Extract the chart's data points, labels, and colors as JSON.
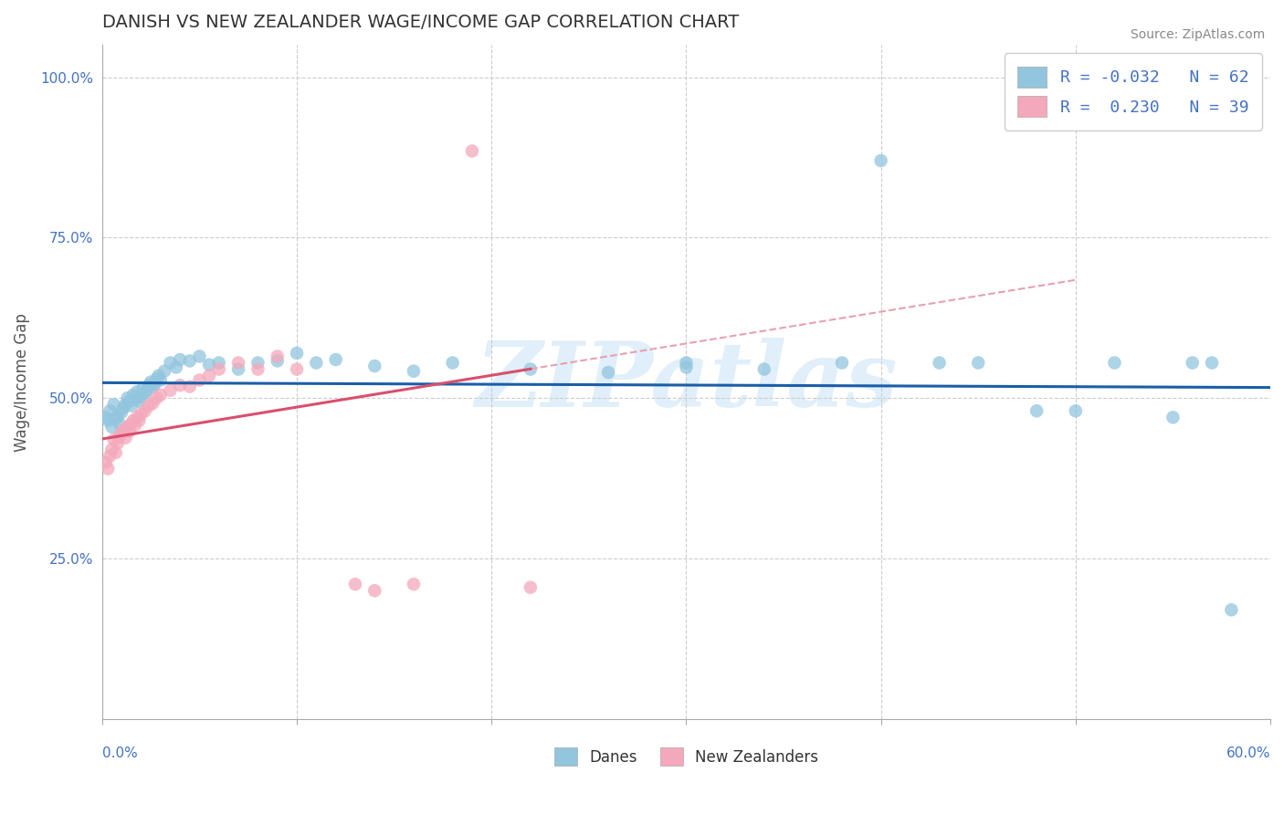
{
  "title": "DANISH VS NEW ZEALANDER WAGE/INCOME GAP CORRELATION CHART",
  "source_text": "Source: ZipAtlas.com",
  "ylabel": "Wage/Income Gap",
  "y_ticks": [
    0.0,
    0.25,
    0.5,
    0.75,
    1.0
  ],
  "y_tick_labels": [
    "",
    "25.0%",
    "50.0%",
    "75.0%",
    "100.0%"
  ],
  "x_range": [
    0.0,
    0.6
  ],
  "y_range": [
    0.0,
    1.05
  ],
  "legend_blue_r": "R = -0.032",
  "legend_blue_n": "N = 62",
  "legend_pink_r": "R =  0.230",
  "legend_pink_n": "N = 39",
  "danes_label": "Danes",
  "nz_label": "New Zealanders",
  "blue_color": "#92C5DE",
  "pink_color": "#F4A8BB",
  "blue_line_color": "#1A5EA8",
  "pink_line_color": "#D94F6E",
  "pink_line_dash_color": "#E8A0B0",
  "watermark_text": "ZIPatlas",
  "background_color": "#ffffff",
  "grid_color": "#cccccc",
  "tick_color": "#4472c4",
  "danes_x": [
    0.002,
    0.003,
    0.004,
    0.005,
    0.006,
    0.007,
    0.008,
    0.009,
    0.01,
    0.011,
    0.012,
    0.013,
    0.014,
    0.015,
    0.016,
    0.017,
    0.018,
    0.019,
    0.02,
    0.021,
    0.022,
    0.023,
    0.024,
    0.025,
    0.026,
    0.027,
    0.028,
    0.029,
    0.03,
    0.032,
    0.035,
    0.038,
    0.04,
    0.045,
    0.05,
    0.055,
    0.06,
    0.07,
    0.08,
    0.09,
    0.1,
    0.11,
    0.12,
    0.14,
    0.16,
    0.18,
    0.22,
    0.26,
    0.3,
    0.34,
    0.38,
    0.4,
    0.45,
    0.48,
    0.5,
    0.52,
    0.55,
    0.57,
    0.58,
    0.3,
    0.43,
    0.56
  ],
  "danes_y": [
    0.47,
    0.465,
    0.48,
    0.455,
    0.49,
    0.468,
    0.472,
    0.46,
    0.478,
    0.485,
    0.49,
    0.5,
    0.495,
    0.488,
    0.505,
    0.498,
    0.51,
    0.495,
    0.502,
    0.515,
    0.508,
    0.512,
    0.52,
    0.525,
    0.518,
    0.522,
    0.53,
    0.535,
    0.528,
    0.542,
    0.555,
    0.548,
    0.56,
    0.558,
    0.565,
    0.552,
    0.555,
    0.545,
    0.555,
    0.558,
    0.57,
    0.555,
    0.56,
    0.55,
    0.542,
    0.555,
    0.545,
    0.54,
    0.548,
    0.545,
    0.555,
    0.87,
    0.555,
    0.48,
    0.48,
    0.555,
    0.47,
    0.555,
    0.17,
    0.555,
    0.555,
    0.555
  ],
  "nz_x": [
    0.002,
    0.003,
    0.004,
    0.005,
    0.006,
    0.007,
    0.008,
    0.009,
    0.01,
    0.011,
    0.012,
    0.013,
    0.014,
    0.015,
    0.016,
    0.017,
    0.018,
    0.019,
    0.02,
    0.022,
    0.024,
    0.026,
    0.028,
    0.03,
    0.035,
    0.04,
    0.045,
    0.05,
    0.055,
    0.06,
    0.07,
    0.08,
    0.09,
    0.1,
    0.13,
    0.14,
    0.16,
    0.19,
    0.22
  ],
  "nz_y": [
    0.4,
    0.39,
    0.41,
    0.42,
    0.435,
    0.415,
    0.43,
    0.44,
    0.445,
    0.45,
    0.438,
    0.455,
    0.448,
    0.46,
    0.465,
    0.458,
    0.47,
    0.465,
    0.475,
    0.48,
    0.488,
    0.492,
    0.5,
    0.505,
    0.512,
    0.52,
    0.518,
    0.528,
    0.535,
    0.545,
    0.555,
    0.545,
    0.565,
    0.545,
    0.21,
    0.2,
    0.21,
    0.885,
    0.205
  ]
}
